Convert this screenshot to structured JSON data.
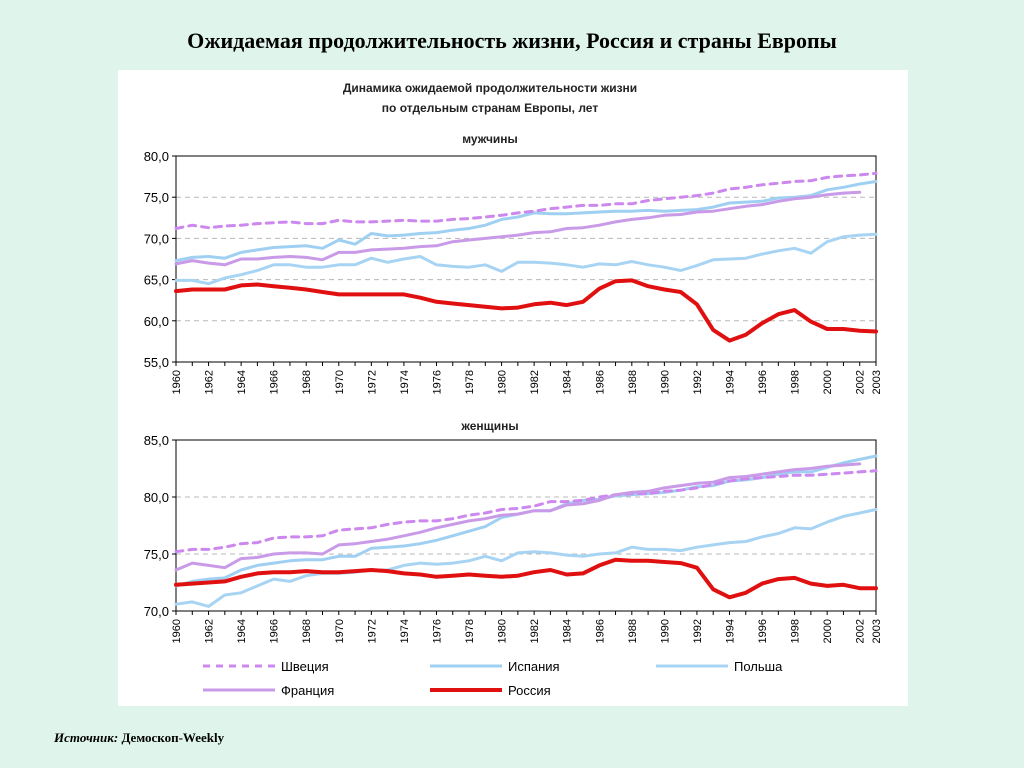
{
  "slide": {
    "title": "Ожидаемая продолжительность жизни,  Россия и страны Европы",
    "source_label": "Источник",
    "source_value": "Демоскоп-Weekly"
  },
  "chart_title_line1": "Динамика ожидаемой продолжительности жизни",
  "chart_title_line2": "по отдельным странам Европы, лет",
  "series_styles": {
    "Швеция": {
      "color": "#cc88ee",
      "dash": true
    },
    "Испания": {
      "color": "#9fd0f2",
      "dash": false
    },
    "Польша": {
      "color": "#a8d4f4",
      "dash": false
    },
    "Франция": {
      "color": "#c99ae8",
      "dash": false
    },
    "Россия": {
      "color": "#e01010",
      "dash": false
    }
  },
  "legend": [
    "Швеция",
    "Испания",
    "Польша",
    "Франция",
    "Россия"
  ],
  "chart_data": [
    {
      "type": "line",
      "title": "мужчины",
      "x": [
        1960,
        1961,
        1962,
        1963,
        1964,
        1965,
        1966,
        1967,
        1968,
        1969,
        1970,
        1971,
        1972,
        1973,
        1974,
        1975,
        1976,
        1977,
        1978,
        1979,
        1980,
        1981,
        1982,
        1983,
        1984,
        1985,
        1986,
        1987,
        1988,
        1989,
        1990,
        1991,
        1992,
        1993,
        1994,
        1995,
        1996,
        1997,
        1998,
        1999,
        2000,
        2001,
        2002,
        2003
      ],
      "x_ticks": [
        "1960",
        "1962",
        "1964",
        "1966",
        "1968",
        "1970",
        "1972",
        "1974",
        "1976",
        "1978",
        "1980",
        "1982",
        "1984",
        "1986",
        "1988",
        "1990",
        "1992",
        "1994",
        "1996",
        "1998",
        "2000",
        "2002",
        "2003"
      ],
      "ylim": [
        55,
        80
      ],
      "y_ticks": [
        "55,0",
        "60,0",
        "65,0",
        "70,0",
        "75,0",
        "80,0"
      ],
      "grid": true,
      "series": [
        {
          "name": "Швеция",
          "values": [
            71.2,
            71.6,
            71.3,
            71.5,
            71.6,
            71.8,
            71.9,
            72.0,
            71.8,
            71.8,
            72.2,
            72.0,
            72.0,
            72.1,
            72.2,
            72.1,
            72.1,
            72.3,
            72.4,
            72.6,
            72.8,
            73.1,
            73.3,
            73.6,
            73.8,
            74.0,
            74.0,
            74.2,
            74.2,
            74.6,
            74.8,
            75.0,
            75.2,
            75.5,
            76.0,
            76.2,
            76.5,
            76.7,
            76.9,
            77.0,
            77.4,
            77.6,
            77.7,
            77.9
          ]
        },
        {
          "name": "Испания",
          "values": [
            67.3,
            67.7,
            67.8,
            67.6,
            68.3,
            68.6,
            68.9,
            69.0,
            69.1,
            68.8,
            69.8,
            69.3,
            70.6,
            70.3,
            70.4,
            70.6,
            70.7,
            71.0,
            71.2,
            71.6,
            72.3,
            72.6,
            73.1,
            73.0,
            73.0,
            73.1,
            73.2,
            73.3,
            73.3,
            73.4,
            73.3,
            73.4,
            73.5,
            73.8,
            74.3,
            74.4,
            74.5,
            74.9,
            75.0,
            75.2,
            75.9,
            76.2,
            76.6,
            76.9
          ]
        },
        {
          "name": "Польша",
          "values": [
            64.9,
            64.9,
            64.5,
            65.2,
            65.6,
            66.1,
            66.8,
            66.8,
            66.5,
            66.5,
            66.8,
            66.8,
            67.6,
            67.1,
            67.5,
            67.8,
            66.8,
            66.6,
            66.5,
            66.8,
            66.0,
            67.1,
            67.1,
            67.0,
            66.8,
            66.5,
            66.9,
            66.8,
            67.2,
            66.8,
            66.5,
            66.1,
            66.7,
            67.4,
            67.5,
            67.6,
            68.1,
            68.5,
            68.8,
            68.2,
            69.6,
            70.2,
            70.4,
            70.5
          ]
        },
        {
          "name": "Франция",
          "values": [
            66.9,
            67.3,
            67.0,
            66.8,
            67.5,
            67.5,
            67.7,
            67.8,
            67.7,
            67.4,
            68.3,
            68.3,
            68.6,
            68.7,
            68.8,
            69.0,
            69.1,
            69.6,
            69.8,
            70.0,
            70.2,
            70.4,
            70.7,
            70.8,
            71.2,
            71.3,
            71.6,
            72.0,
            72.3,
            72.5,
            72.8,
            72.9,
            73.2,
            73.3,
            73.6,
            73.9,
            74.1,
            74.5,
            74.8,
            75.0,
            75.3,
            75.5,
            75.6,
            75.8
          ]
        },
        {
          "name": "Россия",
          "values": [
            63.6,
            63.8,
            63.8,
            63.8,
            64.3,
            64.4,
            64.2,
            64.0,
            63.8,
            63.5,
            63.2,
            63.2,
            63.2,
            63.2,
            63.2,
            62.8,
            62.3,
            62.1,
            61.9,
            61.7,
            61.5,
            61.6,
            62.0,
            62.2,
            61.9,
            62.3,
            63.9,
            64.8,
            64.9,
            64.2,
            63.8,
            63.5,
            62.0,
            58.9,
            57.6,
            58.3,
            59.7,
            60.8,
            61.3,
            59.9,
            59.0,
            59.0,
            58.8,
            58.7
          ]
        }
      ]
    },
    {
      "type": "line",
      "title": "женщины",
      "x": [
        1960,
        1961,
        1962,
        1963,
        1964,
        1965,
        1966,
        1967,
        1968,
        1969,
        1970,
        1971,
        1972,
        1973,
        1974,
        1975,
        1976,
        1977,
        1978,
        1979,
        1980,
        1981,
        1982,
        1983,
        1984,
        1985,
        1986,
        1987,
        1988,
        1989,
        1990,
        1991,
        1992,
        1993,
        1994,
        1995,
        1996,
        1997,
        1998,
        1999,
        2000,
        2001,
        2002,
        2003
      ],
      "x_ticks": [
        "1960",
        "1962",
        "1964",
        "1966",
        "1968",
        "1970",
        "1972",
        "1974",
        "1976",
        "1978",
        "1980",
        "1982",
        "1984",
        "1986",
        "1988",
        "1990",
        "1992",
        "1994",
        "1996",
        "1998",
        "2000",
        "2002",
        "2003"
      ],
      "ylim": [
        70,
        85
      ],
      "y_ticks": [
        "70,0",
        "75,0",
        "80,0",
        "85,0"
      ],
      "grid": true,
      "series": [
        {
          "name": "Швеция",
          "values": [
            75.2,
            75.4,
            75.4,
            75.6,
            75.9,
            76.0,
            76.4,
            76.5,
            76.5,
            76.6,
            77.1,
            77.2,
            77.3,
            77.6,
            77.8,
            77.9,
            77.9,
            78.1,
            78.4,
            78.6,
            78.9,
            79.0,
            79.2,
            79.6,
            79.6,
            79.7,
            80.0,
            80.2,
            80.3,
            80.3,
            80.5,
            80.6,
            80.8,
            81.1,
            81.4,
            81.6,
            81.7,
            81.8,
            81.9,
            81.9,
            82.0,
            82.1,
            82.2,
            82.3
          ]
        },
        {
          "name": "Испания",
          "values": [
            72.2,
            72.6,
            72.8,
            72.9,
            73.6,
            74.0,
            74.2,
            74.4,
            74.5,
            74.5,
            74.8,
            74.8,
            75.5,
            75.6,
            75.7,
            75.9,
            76.2,
            76.6,
            77.0,
            77.4,
            78.2,
            78.5,
            78.8,
            78.8,
            79.4,
            79.7,
            79.8,
            80.1,
            80.2,
            80.3,
            80.4,
            80.6,
            80.9,
            81.0,
            81.4,
            81.5,
            81.7,
            82.0,
            82.2,
            82.2,
            82.6,
            83.0,
            83.3,
            83.6
          ]
        },
        {
          "name": "Польша",
          "values": [
            70.6,
            70.8,
            70.4,
            71.4,
            71.6,
            72.2,
            72.8,
            72.6,
            73.1,
            73.3,
            73.3,
            73.4,
            73.6,
            73.6,
            74.0,
            74.2,
            74.1,
            74.2,
            74.4,
            74.8,
            74.4,
            75.1,
            75.2,
            75.1,
            74.9,
            74.8,
            75.0,
            75.1,
            75.6,
            75.4,
            75.4,
            75.3,
            75.6,
            75.8,
            76.0,
            76.1,
            76.5,
            76.8,
            77.3,
            77.2,
            77.8,
            78.3,
            78.6,
            78.9
          ]
        },
        {
          "name": "Франция",
          "values": [
            73.6,
            74.2,
            74.0,
            73.8,
            74.6,
            74.7,
            75.0,
            75.1,
            75.1,
            75.0,
            75.8,
            75.9,
            76.1,
            76.3,
            76.6,
            76.9,
            77.3,
            77.6,
            77.9,
            78.1,
            78.4,
            78.5,
            78.8,
            78.8,
            79.3,
            79.4,
            79.7,
            80.2,
            80.4,
            80.5,
            80.8,
            81.0,
            81.2,
            81.3,
            81.7,
            81.8,
            82.0,
            82.2,
            82.4,
            82.5,
            82.7,
            82.8,
            82.9,
            83.0
          ]
        },
        {
          "name": "Россия",
          "values": [
            72.3,
            72.4,
            72.5,
            72.6,
            73.0,
            73.3,
            73.4,
            73.4,
            73.5,
            73.4,
            73.4,
            73.5,
            73.6,
            73.5,
            73.3,
            73.2,
            73.0,
            73.1,
            73.2,
            73.1,
            73.0,
            73.1,
            73.4,
            73.6,
            73.2,
            73.3,
            74.0,
            74.5,
            74.4,
            74.4,
            74.3,
            74.2,
            73.8,
            71.9,
            71.2,
            71.6,
            72.4,
            72.8,
            72.9,
            72.4,
            72.2,
            72.3,
            72.0,
            72.0
          ]
        }
      ]
    }
  ]
}
